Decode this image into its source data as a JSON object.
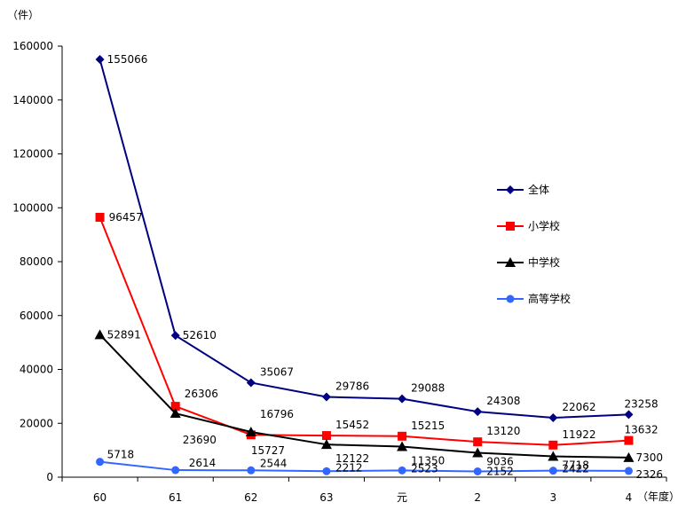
{
  "chart_data": {
    "type": "line",
    "unit_label": "（件）",
    "x_unit_label": "（年度）",
    "categories": [
      "60",
      "61",
      "62",
      "63",
      "元",
      "2",
      "3",
      "4"
    ],
    "ylim": [
      0,
      160000
    ],
    "yticks": [
      "0",
      "20000",
      "40000",
      "60000",
      "80000",
      "100000",
      "120000",
      "140000",
      "160000"
    ],
    "grid": false,
    "legend_position": "right",
    "series": [
      {
        "name": "全体",
        "color": "#000080",
        "marker": "diamond",
        "values": [
          155066,
          52610,
          35067,
          29786,
          29088,
          24308,
          22062,
          23258
        ]
      },
      {
        "name": "小学校",
        "color": "#ff0000",
        "marker": "square",
        "values": [
          96457,
          26306,
          15727,
          15452,
          15215,
          13120,
          11922,
          13632
        ]
      },
      {
        "name": "中学校",
        "color": "#000000",
        "marker": "triangle",
        "values": [
          52891,
          23690,
          16796,
          12122,
          11350,
          9036,
          7718,
          7300
        ]
      },
      {
        "name": "高等学校",
        "color": "#3366ff",
        "marker": "circle",
        "values": [
          5718,
          2614,
          2544,
          2212,
          2523,
          2152,
          2422,
          2326
        ]
      }
    ],
    "data_labels": [
      [
        "155066",
        "52610",
        "35067",
        "29786",
        "29088",
        "24308",
        "22062",
        "23258"
      ],
      [
        "96457",
        "26306",
        "15727",
        "15452",
        "15215",
        "13120",
        "11922",
        "13632"
      ],
      [
        "52891",
        "23690",
        "16796",
        "12122",
        "11350",
        "9036",
        "7718",
        "7300"
      ],
      [
        "5718",
        "2614",
        "2544",
        "2212",
        "2523",
        "2152",
        "2422",
        "2326"
      ]
    ]
  }
}
